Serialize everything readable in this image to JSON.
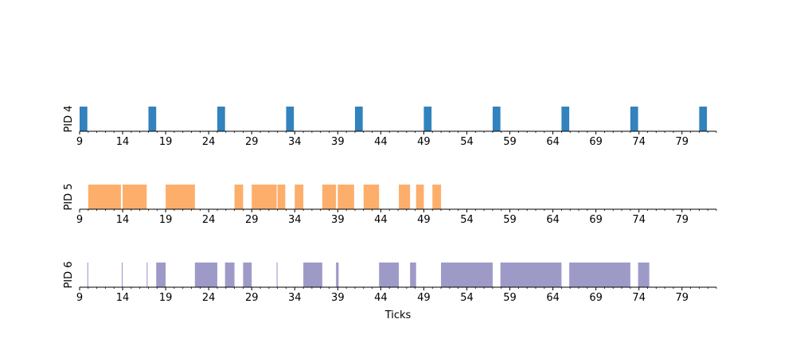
{
  "chart_data": {
    "type": "timeline",
    "xlabel": "Ticks",
    "xlim": [
      9,
      83
    ],
    "xticks": [
      9,
      14,
      19,
      24,
      29,
      34,
      39,
      44,
      49,
      54,
      59,
      64,
      69,
      74,
      79
    ],
    "minor_tick_step": 1,
    "grid": false,
    "panels": [
      {
        "label": "PID 4",
        "color": "#3182bd",
        "intervals": [
          [
            9.0,
            9.9
          ],
          [
            17.0,
            17.9
          ],
          [
            25.0,
            25.9
          ],
          [
            33.0,
            33.9
          ],
          [
            41.0,
            41.9
          ],
          [
            49.0,
            49.9
          ],
          [
            57.0,
            57.9
          ],
          [
            65.0,
            65.9
          ],
          [
            73.0,
            73.9
          ],
          [
            81.0,
            81.9
          ]
        ]
      },
      {
        "label": "PID 5",
        "color": "#fdae6b",
        "intervals": [
          [
            10.0,
            13.8
          ],
          [
            14.0,
            16.8
          ],
          [
            19.0,
            22.4
          ],
          [
            27.0,
            28.0
          ],
          [
            29.0,
            31.9
          ],
          [
            32.0,
            32.9
          ],
          [
            34.0,
            35.0
          ],
          [
            37.2,
            38.8
          ],
          [
            39.0,
            40.9
          ],
          [
            42.0,
            43.8
          ],
          [
            46.1,
            47.4
          ],
          [
            48.1,
            49.0
          ],
          [
            50.0,
            51.0
          ]
        ]
      },
      {
        "label": "PID 6",
        "color": "#9e9ac8",
        "intervals": [
          [
            9.9,
            10.0
          ],
          [
            13.9,
            14.0
          ],
          [
            16.8,
            16.9
          ],
          [
            17.9,
            19.0
          ],
          [
            22.4,
            25.0
          ],
          [
            25.9,
            27.0
          ],
          [
            28.0,
            29.0
          ],
          [
            31.9,
            32.0
          ],
          [
            35.0,
            37.2
          ],
          [
            38.8,
            39.1
          ],
          [
            43.8,
            46.1
          ],
          [
            47.4,
            48.1
          ],
          [
            51.0,
            57.0
          ],
          [
            57.9,
            65.0
          ],
          [
            65.9,
            73.0
          ],
          [
            73.9,
            75.2
          ]
        ]
      }
    ]
  }
}
